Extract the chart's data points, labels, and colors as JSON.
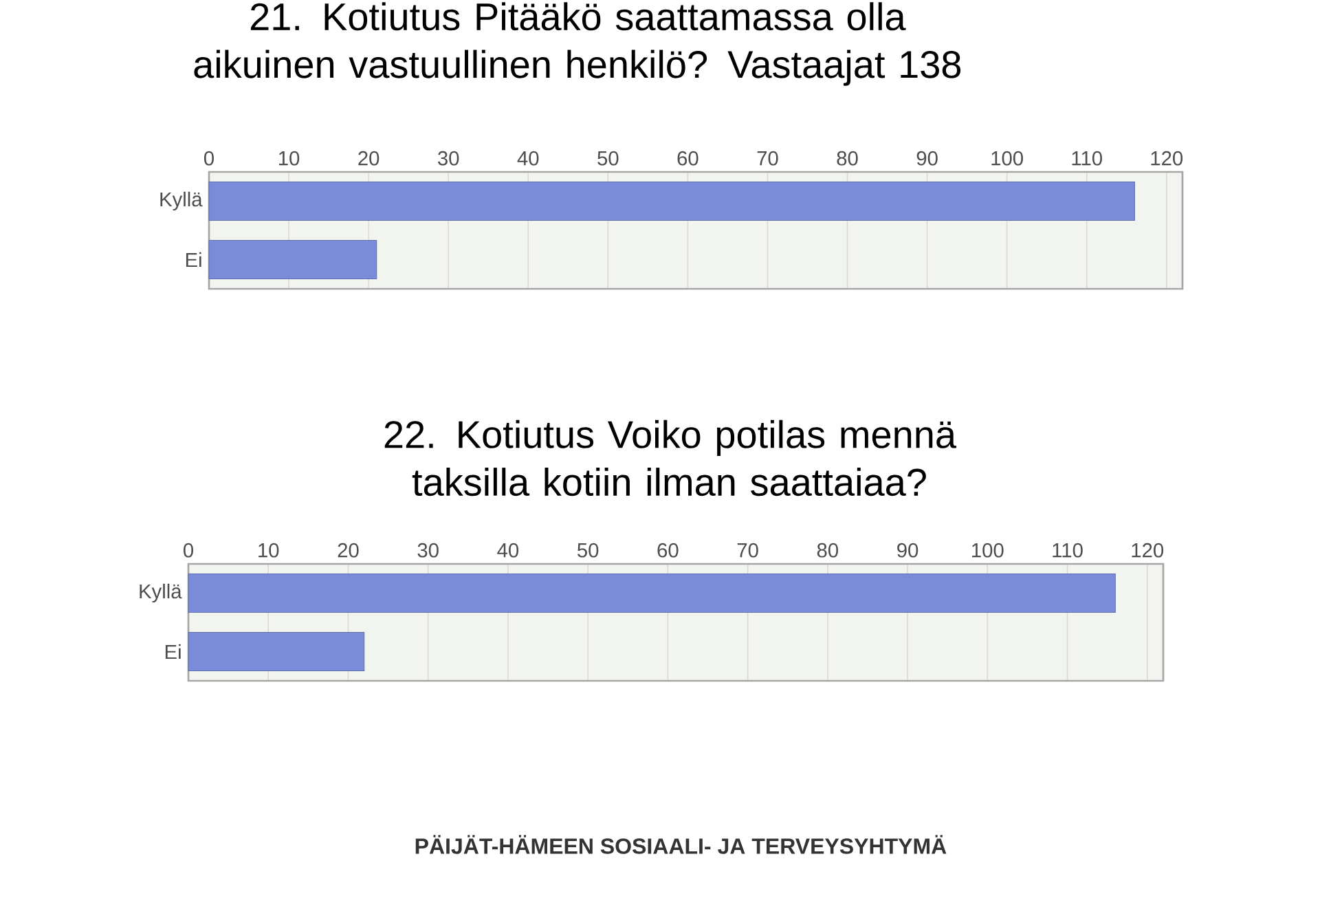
{
  "chart_data": [
    {
      "type": "bar",
      "orientation": "horizontal",
      "title": "21. Kotiutus Pitääkö saattamassa olla aikuinen vastuullinen henkilö? Vastaajat 138",
      "categories": [
        "Kyllä",
        "Ei"
      ],
      "values": [
        116,
        21
      ],
      "color": "#7a8bd9",
      "xlim": [
        0,
        122
      ],
      "xticks": [
        0,
        10,
        20,
        30,
        40,
        50,
        60,
        70,
        80,
        90,
        100,
        110,
        120
      ],
      "grid": "x"
    },
    {
      "type": "bar",
      "orientation": "horizontal",
      "title": "22. Kotiutus Voiko potilas mennä taksilla kotiin ilman saattaiaa?",
      "categories": [
        "Kyllä",
        "Ei"
      ],
      "values": [
        116,
        22
      ],
      "color": "#7a8bd9",
      "xlim": [
        0,
        122
      ],
      "xticks": [
        0,
        10,
        20,
        30,
        40,
        50,
        60,
        70,
        80,
        90,
        100,
        110,
        120
      ],
      "grid": "x",
      "annotations": [
        "PÄIJÄT-HÄMEEN SOSIAALI- JA TERVEYSYHTYMÄ"
      ]
    }
  ]
}
